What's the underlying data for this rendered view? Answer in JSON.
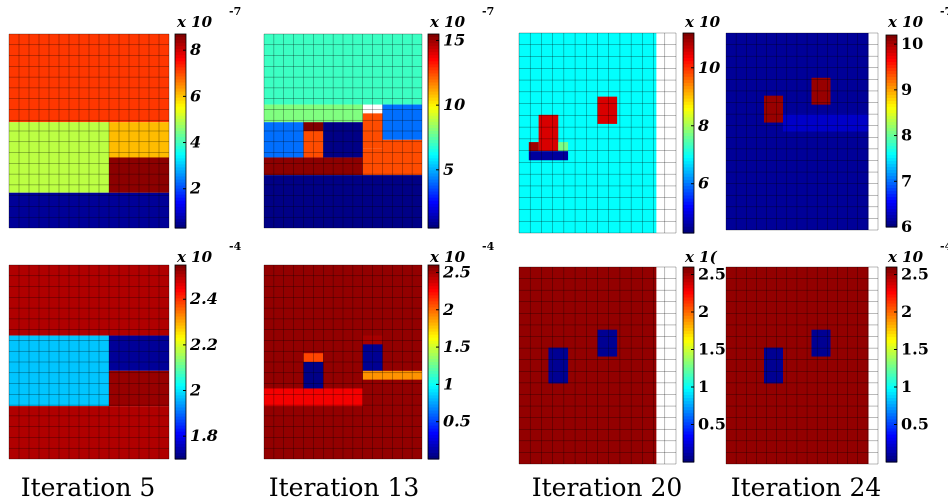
{
  "iteration_labels": [
    "Iteration 5",
    "Iteration 13",
    "Iteration 20",
    "Iteration 24"
  ],
  "chart_data": [
    {
      "type": "heatmap",
      "row": "top",
      "iteration": "Iteration 5",
      "colorbar": {
        "multiplier": "x 10",
        "exponent": "-7",
        "ticks": [
          "8",
          "6",
          "4",
          "2"
        ],
        "tick_values": [
          8,
          6,
          4,
          2
        ],
        "range": [
          0.3,
          8.7
        ]
      },
      "grid": {
        "cols": 16,
        "rows": 18
      },
      "regions": [
        {
          "x": [
            0,
            16
          ],
          "y": [
            0,
            10
          ],
          "value": 7.2
        },
        {
          "x": [
            0,
            10
          ],
          "y": [
            10,
            18
          ],
          "value": 5.0
        },
        {
          "x": [
            10,
            16
          ],
          "y": [
            10,
            18
          ],
          "value": 6.1
        },
        {
          "x": [
            10,
            16
          ],
          "y": [
            14,
            18
          ],
          "value": 8.6
        },
        {
          "x": [
            0,
            16
          ],
          "y": [
            18,
            22
          ],
          "value": 0.5
        }
      ]
    },
    {
      "type": "heatmap",
      "row": "top",
      "iteration": "Iteration 13",
      "colorbar": {
        "multiplier": "x 10",
        "exponent": "-7",
        "ticks": [
          "15",
          "10",
          "5"
        ],
        "tick_values": [
          15,
          10,
          5
        ],
        "range": [
          0.5,
          15.5
        ]
      },
      "grid": {
        "cols": 16,
        "rows": 18
      },
      "regions": [
        {
          "x": [
            0,
            16
          ],
          "y": [
            0,
            8
          ],
          "value": 7.0
        },
        {
          "x": [
            0,
            10
          ],
          "y": [
            8,
            10
          ],
          "value": 8.0
        },
        {
          "x": [
            0,
            4
          ],
          "y": [
            10,
            14
          ],
          "value": 4.0
        },
        {
          "x": [
            4,
            6
          ],
          "y": [
            10,
            11
          ],
          "value": 15.5
        },
        {
          "x": [
            4,
            6
          ],
          "y": [
            11,
            14
          ],
          "value": 12.5
        },
        {
          "x": [
            6,
            10
          ],
          "y": [
            10,
            14
          ],
          "value": 0.6
        },
        {
          "x": [
            10,
            12
          ],
          "y": [
            9,
            13
          ],
          "value": 12.5
        },
        {
          "x": [
            12,
            16
          ],
          "y": [
            8,
            12
          ],
          "value": 4.0
        },
        {
          "x": [
            12,
            16
          ],
          "y": [
            12,
            14
          ],
          "value": 12.5
        },
        {
          "x": [
            10,
            16
          ],
          "y": [
            13,
            16
          ],
          "value": 12.5
        },
        {
          "x": [
            0,
            10
          ],
          "y": [
            14,
            16
          ],
          "value": 15.3
        },
        {
          "x": [
            0,
            16
          ],
          "y": [
            16,
            22
          ],
          "value": 0.6
        }
      ]
    },
    {
      "type": "heatmap",
      "row": "top",
      "iteration": "Iteration 20",
      "colorbar": {
        "multiplier": "x 10",
        "exponent": "",
        "ticks": [
          "10",
          "8",
          "6"
        ],
        "tick_values": [
          10,
          8,
          6
        ],
        "range": [
          4.3,
          11.2
        ]
      },
      "grid": {
        "cols": 14,
        "rows": 17
      },
      "regions": [
        {
          "x": [
            0,
            14
          ],
          "y": [
            0,
            22
          ],
          "value": 6.9
        },
        {
          "x": [
            2,
            4
          ],
          "y": [
            9,
            13
          ],
          "value": 10.6
        },
        {
          "x": [
            8,
            10
          ],
          "y": [
            7,
            10
          ],
          "value": 10.6
        },
        {
          "x": [
            1,
            2
          ],
          "y": [
            12,
            13
          ],
          "value": 11.0
        },
        {
          "x": [
            4,
            5
          ],
          "y": [
            12,
            13
          ],
          "value": 7.7
        },
        {
          "x": [
            1,
            5
          ],
          "y": [
            13,
            14
          ],
          "value": 4.5
        }
      ]
    },
    {
      "type": "heatmap",
      "row": "top",
      "iteration": "Iteration 24",
      "colorbar": {
        "multiplier": "x 10",
        "exponent": "-7",
        "ticks": [
          "10",
          "9",
          "8",
          "7",
          "6"
        ],
        "tick_values": [
          10,
          9,
          8,
          7,
          6
        ],
        "range": [
          6.0,
          10.2
        ]
      },
      "grid": {
        "cols": 15,
        "rows": 17
      },
      "regions": [
        {
          "x": [
            0,
            15
          ],
          "y": [
            0,
            22
          ],
          "value": 6.1
        },
        {
          "x": [
            4,
            6
          ],
          "y": [
            7,
            10
          ],
          "value": 10.1
        },
        {
          "x": [
            9,
            11
          ],
          "y": [
            5,
            8
          ],
          "value": 10.1
        },
        {
          "x": [
            6,
            15
          ],
          "y": [
            9,
            11
          ],
          "value": 6.3
        }
      ]
    },
    {
      "type": "heatmap",
      "row": "bottom",
      "iteration": "Iteration 5",
      "colorbar": {
        "multiplier": "x 10",
        "exponent": "-4",
        "ticks": [
          "2.4",
          "2.2",
          "2",
          "1.8"
        ],
        "tick_values": [
          2.4,
          2.2,
          2.0,
          1.8
        ],
        "range": [
          1.7,
          2.55
        ]
      },
      "grid": {
        "cols": 16,
        "rows": 18
      },
      "regions": [
        {
          "x": [
            0,
            16
          ],
          "y": [
            0,
            8
          ],
          "value": 2.51
        },
        {
          "x": [
            0,
            10
          ],
          "y": [
            8,
            16
          ],
          "value": 1.97
        },
        {
          "x": [
            10,
            16
          ],
          "y": [
            8,
            12
          ],
          "value": 1.72
        },
        {
          "x": [
            10,
            16
          ],
          "y": [
            12,
            16
          ],
          "value": 2.53
        },
        {
          "x": [
            0,
            16
          ],
          "y": [
            16,
            22
          ],
          "value": 2.51
        }
      ]
    },
    {
      "type": "heatmap",
      "row": "bottom",
      "iteration": "Iteration 13",
      "colorbar": {
        "multiplier": "x 10",
        "exponent": "-4",
        "ticks": [
          "2.5",
          "2",
          "1.5",
          "1",
          "0.5"
        ],
        "tick_values": [
          2.5,
          2.0,
          1.5,
          1.0,
          0.5
        ],
        "range": [
          0.0,
          2.6
        ]
      },
      "grid": {
        "cols": 16,
        "rows": 18
      },
      "regions": [
        {
          "x": [
            0,
            16
          ],
          "y": [
            0,
            22
          ],
          "value": 2.55
        },
        {
          "x": [
            4,
            6
          ],
          "y": [
            10,
            11
          ],
          "value": 2.1
        },
        {
          "x": [
            4,
            6
          ],
          "y": [
            11,
            14
          ],
          "value": 0.02
        },
        {
          "x": [
            10,
            12
          ],
          "y": [
            8,
            9
          ],
          "value": 2.5
        },
        {
          "x": [
            10,
            12
          ],
          "y": [
            9,
            12
          ],
          "value": 0.05
        },
        {
          "x": [
            10,
            16
          ],
          "y": [
            12,
            13
          ],
          "value": 1.9
        },
        {
          "x": [
            0,
            10
          ],
          "y": [
            14,
            16
          ],
          "value": 2.3
        }
      ]
    },
    {
      "type": "heatmap",
      "row": "bottom",
      "iteration": "Iteration 20",
      "colorbar": {
        "multiplier": "x 1(",
        "exponent": "",
        "ticks": [
          "2.5",
          "2",
          "1.5",
          "1",
          "0.5"
        ],
        "tick_values": [
          2.5,
          2.0,
          1.5,
          1.0,
          0.5
        ],
        "range": [
          0.0,
          2.6
        ]
      },
      "grid": {
        "cols": 14,
        "rows": 17
      },
      "regions": [
        {
          "x": [
            0,
            14
          ],
          "y": [
            0,
            22
          ],
          "value": 2.55
        },
        {
          "x": [
            3,
            5
          ],
          "y": [
            9,
            13
          ],
          "value": 0.05
        },
        {
          "x": [
            8,
            10
          ],
          "y": [
            7,
            10
          ],
          "value": 0.05
        }
      ]
    },
    {
      "type": "heatmap",
      "row": "bottom",
      "iteration": "Iteration 24",
      "colorbar": {
        "multiplier": "x 10",
        "exponent": "-4",
        "ticks": [
          "2.5",
          "2",
          "1.5",
          "1",
          "0.5"
        ],
        "tick_values": [
          2.5,
          2.0,
          1.5,
          1.0,
          0.5
        ],
        "range": [
          0.0,
          2.6
        ]
      },
      "grid": {
        "cols": 15,
        "rows": 17
      },
      "regions": [
        {
          "x": [
            0,
            15
          ],
          "y": [
            0,
            22
          ],
          "value": 2.55
        },
        {
          "x": [
            4,
            6
          ],
          "y": [
            9,
            13
          ],
          "value": 0.05
        },
        {
          "x": [
            9,
            11
          ],
          "y": [
            7,
            10
          ],
          "value": 0.05
        }
      ]
    }
  ]
}
